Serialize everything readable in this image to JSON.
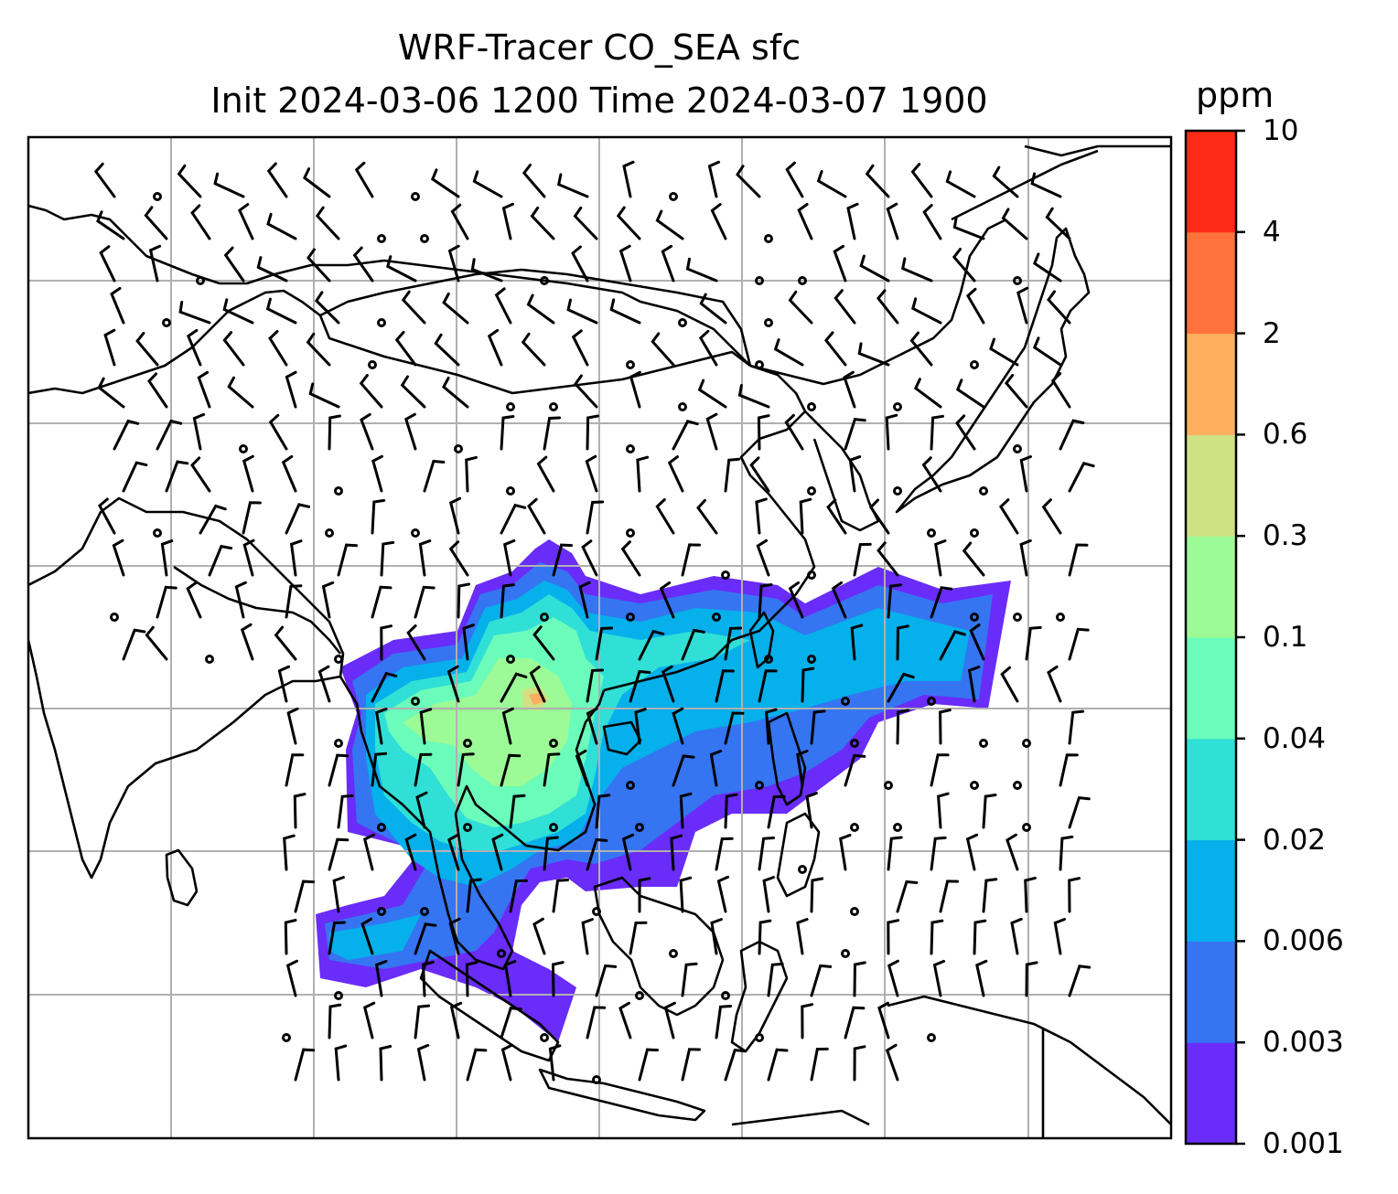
{
  "title": {
    "line1": "WRF-Tracer CO_SEA sfc",
    "line2": "Init 2024-03-06 1200 Time 2024-03-07 1900"
  },
  "colorbar": {
    "unit": "ppm",
    "levels": [
      "0.001",
      "0.003",
      "0.006",
      "0.02",
      "0.04",
      "0.1",
      "0.3",
      "0.6",
      "2",
      "4",
      "10"
    ],
    "colors": [
      "#6a2cf8",
      "#3575f2",
      "#05b0eb",
      "#30dfd6",
      "#6bfcbb",
      "#9cfb97",
      "#d0e183",
      "#ffaf5e",
      "#ff723b",
      "#fe2c17"
    ]
  },
  "map": {
    "land_outline_color": "#000000",
    "grid_color": "#b0b0b0"
  }
}
